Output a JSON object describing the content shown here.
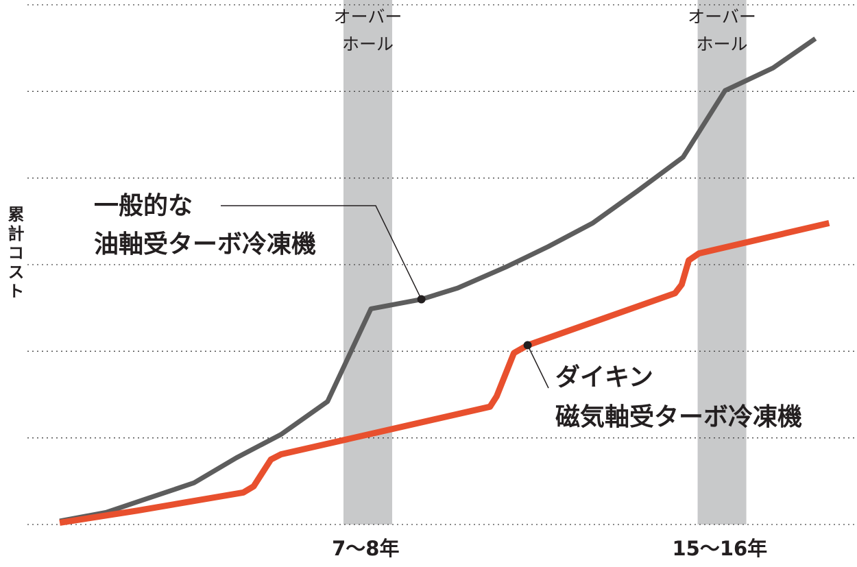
{
  "chart_data": {
    "type": "line",
    "y_label": "累計コスト",
    "xlim": [
      0,
      18.6
    ],
    "ylim": [
      0,
      6
    ],
    "gridlines": [
      0,
      1,
      2,
      3,
      4,
      5,
      6
    ],
    "xticks": [
      {
        "value": 7.5,
        "label": "7～8年"
      },
      {
        "value": 15.5,
        "label": "15～16年"
      }
    ],
    "bands": [
      {
        "xlim": [
          7,
          8.1
        ],
        "label": [
          "オーバー",
          "ホール"
        ],
        "color": "#c8c9ca"
      },
      {
        "xlim": [
          15,
          16.1
        ],
        "label": [
          "オーバー",
          "ホール"
        ],
        "color": "#c8c9ca"
      }
    ],
    "series": [
      {
        "name": [
          "一般的な",
          "油軸受ターボ冷凍機"
        ],
        "color": "#5d5d5d",
        "x": [
          0.59,
          1.64,
          2.57,
          3.62,
          4.58,
          5.59,
          6.64,
          7.62,
          8.76,
          9.58,
          10.7,
          11.63,
          12.63,
          13.64,
          14.67,
          15.62,
          16.7,
          17.66
        ],
        "values": [
          0.04,
          0.14,
          0.3,
          0.48,
          0.77,
          1.04,
          1.42,
          2.49,
          2.6,
          2.73,
          2.98,
          3.21,
          3.48,
          3.85,
          4.24,
          5.01,
          5.27,
          5.61
        ]
      },
      {
        "name": [
          "ダイキン",
          "磁気軸受ターボ冷凍機"
        ],
        "color": "#e8502e",
        "x": [
          0.59,
          2.34,
          4.74,
          4.97,
          5.36,
          5.59,
          10.31,
          10.46,
          10.85,
          11.16,
          14.49,
          14.64,
          14.8,
          15.03,
          17.97
        ],
        "values": [
          0.02,
          0.16,
          0.37,
          0.44,
          0.75,
          0.81,
          1.36,
          1.48,
          1.98,
          2.07,
          2.67,
          2.77,
          3.05,
          3.13,
          3.48
        ]
      }
    ]
  }
}
